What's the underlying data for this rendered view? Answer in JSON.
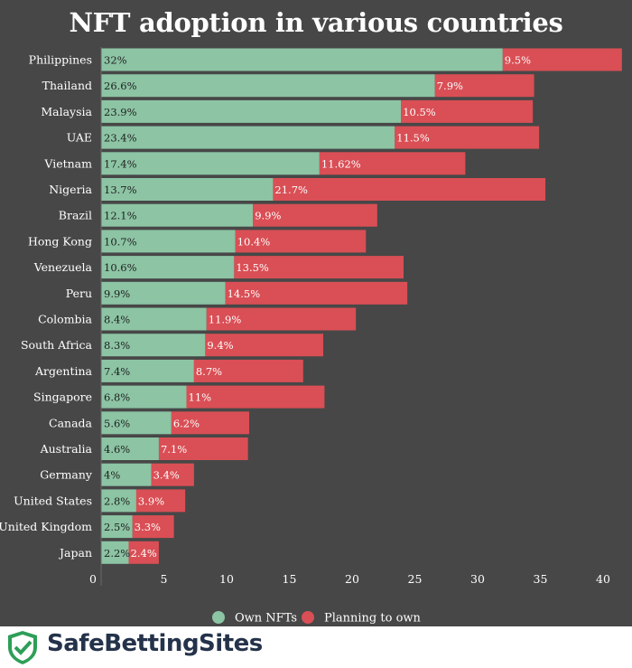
{
  "chart_data": {
    "type": "bar",
    "orientation": "horizontal",
    "stacked": true,
    "title": "NFT adoption in various countries",
    "categories": [
      "Philippines",
      "Thailand",
      "Malaysia",
      "UAE",
      "Vietnam",
      "Nigeria",
      "Brazil",
      "Hong Kong",
      "Venezuela",
      "Peru",
      "Colombia",
      "South Africa",
      "Argentina",
      "Singapore",
      "Canada",
      "Australia",
      "Germany",
      "United States",
      "United Kingdom",
      "Japan"
    ],
    "series": [
      {
        "name": "Own NFTs",
        "color": "#8cc4a4",
        "values": [
          32,
          26.6,
          23.9,
          23.4,
          17.4,
          13.7,
          12.1,
          10.7,
          10.6,
          9.9,
          8.4,
          8.3,
          7.4,
          6.8,
          5.6,
          4.6,
          4,
          2.8,
          2.5,
          2.2
        ],
        "labels": [
          "32%",
          "26.6%",
          "23.9%",
          "23.4%",
          "17.4%",
          "13.7%",
          "12.1%",
          "10.7%",
          "10.6%",
          "9.9%",
          "8.4%",
          "8.3%",
          "7.4%",
          "6.8%",
          "5.6%",
          "4.6%",
          "4%",
          "2.8%",
          "2.5%",
          "2.2%"
        ]
      },
      {
        "name": "Planning to own",
        "color": "#d94f55",
        "values": [
          9.5,
          7.9,
          10.5,
          11.5,
          11.62,
          21.7,
          9.9,
          10.4,
          13.5,
          14.5,
          11.9,
          9.4,
          8.7,
          11,
          6.2,
          7.1,
          3.4,
          3.9,
          3.3,
          2.4
        ],
        "labels": [
          "9.5%",
          "7.9%",
          "10.5%",
          "11.5%",
          "11.62%",
          "21.7%",
          "9.9%",
          "10.4%",
          "13.5%",
          "14.5%",
          "11.9%",
          "9.4%",
          "8.7%",
          "11%",
          "6.2%",
          "7.1%",
          "3.4%",
          "3.9%",
          "3.3%",
          "2.4%"
        ]
      }
    ],
    "xlim": [
      0,
      42
    ],
    "xticks": [
      "0",
      "5",
      "10",
      "15",
      "20",
      "25",
      "30",
      "35",
      "40"
    ],
    "grid": false,
    "legend_position": "bottom"
  },
  "footer": {
    "brand": "SafeBettingSites"
  }
}
